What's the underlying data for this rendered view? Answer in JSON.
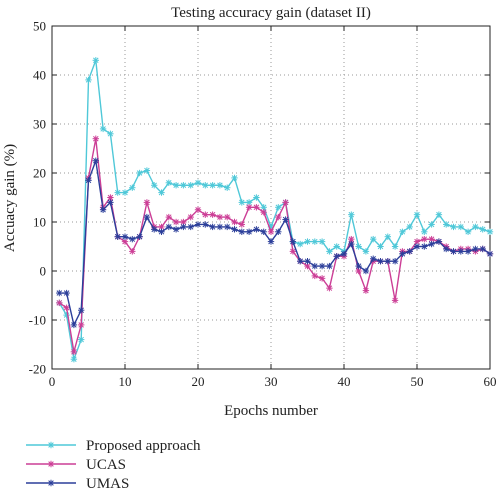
{
  "chart_data": {
    "type": "line",
    "title": "Testing accuracy gain (dataset II)",
    "xlabel": "Epochs number",
    "ylabel": "Accuacy gain (%)",
    "xlim": [
      0,
      60
    ],
    "ylim": [
      -20,
      50
    ],
    "xticks": [
      0,
      10,
      20,
      30,
      40,
      50,
      60
    ],
    "yticks": [
      -20,
      -10,
      0,
      10,
      20,
      30,
      40,
      50
    ],
    "grid": true,
    "legend_position": "bottom-outside",
    "x": [
      1,
      2,
      3,
      4,
      5,
      6,
      7,
      8,
      9,
      10,
      11,
      12,
      13,
      14,
      15,
      16,
      17,
      18,
      19,
      20,
      21,
      22,
      23,
      24,
      25,
      26,
      27,
      28,
      29,
      30,
      31,
      32,
      33,
      34,
      35,
      36,
      37,
      38,
      39,
      40,
      41,
      42,
      43,
      44,
      45,
      46,
      47,
      48,
      49,
      50,
      51,
      52,
      53,
      54,
      55,
      56,
      57,
      58,
      59,
      60
    ],
    "series": [
      {
        "name": "Proposed approach",
        "color": "#4fc8d8",
        "values": [
          -6.5,
          -9,
          -18,
          -14,
          39,
          43,
          29,
          28,
          16,
          16,
          17,
          20,
          20.5,
          17.5,
          16,
          18,
          17.5,
          17.5,
          17.5,
          18,
          17.5,
          17.5,
          17.5,
          17,
          19,
          14,
          14,
          15,
          13,
          9,
          13,
          14,
          6,
          5.5,
          6,
          6,
          6,
          4,
          5,
          4,
          11.5,
          5,
          4,
          6.5,
          5,
          7,
          5,
          8,
          9,
          11.5,
          8,
          9.5,
          11.5,
          9.5,
          9,
          9,
          8,
          9,
          8.5,
          8
        ]
      },
      {
        "name": "UCAS",
        "color": "#cc3e96",
        "values": [
          -6.5,
          -7.5,
          -16.5,
          -11,
          19,
          27,
          13,
          15,
          7,
          6,
          4,
          7,
          14,
          9,
          9,
          11,
          10,
          10,
          11,
          12.5,
          11.5,
          11.5,
          11,
          11,
          10,
          9.5,
          13,
          13,
          12,
          8,
          11,
          14,
          4,
          2,
          1,
          -1,
          -1.5,
          -3.5,
          3,
          3,
          6.5,
          0,
          -4,
          2,
          2,
          2,
          -6,
          4,
          4,
          6,
          6.5,
          6.5,
          6,
          5,
          4,
          4.5,
          4.5,
          4,
          4.5,
          3.5
        ]
      },
      {
        "name": "UMAS",
        "color": "#2c3f9a",
        "values": [
          -4.5,
          -4.5,
          -11,
          -8,
          18.5,
          22.5,
          12.5,
          14,
          7,
          7,
          6.5,
          7,
          11,
          8.5,
          8,
          9,
          8.5,
          9,
          9,
          9.5,
          9.5,
          9,
          9,
          9,
          8.5,
          8,
          8,
          8.5,
          8,
          6,
          8,
          10.5,
          6,
          2,
          2,
          1,
          1,
          1,
          3,
          3.5,
          5.5,
          1,
          0,
          2.5,
          2,
          2,
          2,
          3.5,
          4,
          5,
          5,
          5.5,
          6,
          4.5,
          4,
          4,
          4,
          4.5,
          4.5,
          3.5
        ]
      }
    ]
  }
}
